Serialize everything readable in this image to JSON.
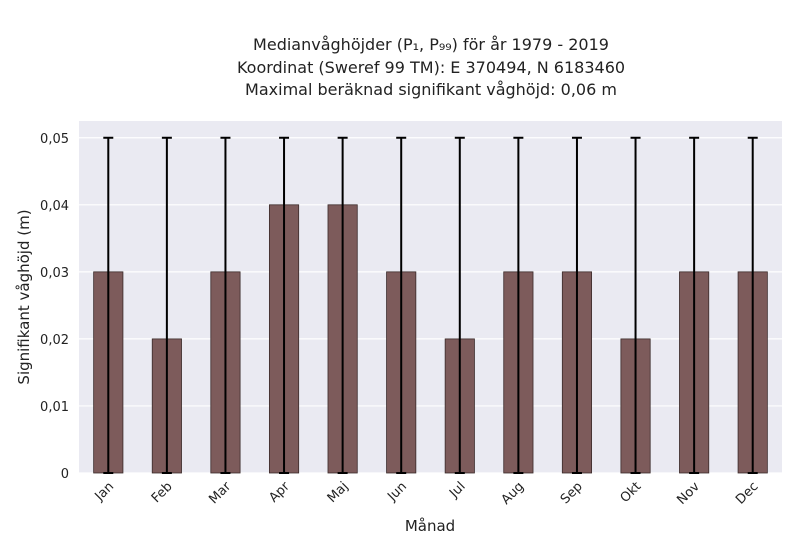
{
  "chart_data": {
    "type": "bar",
    "title_lines": [
      "Medianvåghöjder (P₁, P₉₉) för år 1979 - 2019",
      "Koordinat (Sweref 99 TM): E 370494, N 6183460",
      "Maximal beräknad signifikant våghöjd: 0,06 m"
    ],
    "xlabel": "Månad",
    "ylabel": "Signifikant våghöjd (m)",
    "categories": [
      "Jan",
      "Feb",
      "Mar",
      "Apr",
      "Maj",
      "Jun",
      "Jul",
      "Aug",
      "Sep",
      "Okt",
      "Nov",
      "Dec"
    ],
    "values": [
      0.03,
      0.02,
      0.03,
      0.04,
      0.04,
      0.03,
      0.02,
      0.03,
      0.03,
      0.02,
      0.03,
      0.03
    ],
    "error_low": [
      0,
      0,
      0,
      0,
      0,
      0,
      0,
      0,
      0,
      0,
      0,
      0
    ],
    "error_high": [
      0.05,
      0.05,
      0.05,
      0.05,
      0.05,
      0.05,
      0.05,
      0.05,
      0.05,
      0.05,
      0.05,
      0.05
    ],
    "ylim": [
      0,
      0.0525
    ],
    "yticks": [
      0,
      0.01,
      0.02,
      0.03,
      0.04,
      0.05
    ],
    "ytick_labels": [
      "0",
      "0,01",
      "0,02",
      "0,03",
      "0,04",
      "0,05"
    ],
    "grid": true,
    "colors": {
      "bar": "#7d5b5b",
      "bar_edge": "#3a2a2a",
      "error": "#000000",
      "plot_bg": "#eaeaf2",
      "grid": "#ffffff"
    }
  }
}
